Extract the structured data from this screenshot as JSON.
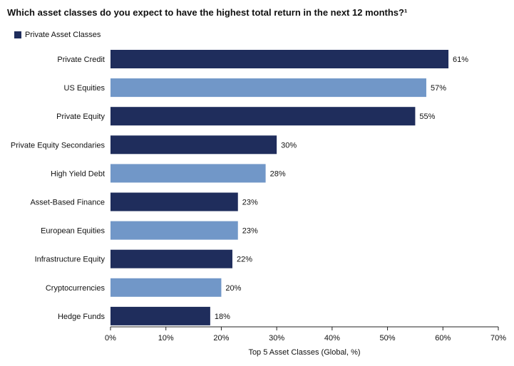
{
  "chart_data": {
    "type": "bar",
    "orientation": "horizontal",
    "title": "Which asset classes do you expect to have the highest total return in the next 12 months?¹",
    "xlabel": "Top 5 Asset Classes (Global, %)",
    "ylabel": "",
    "xlim": [
      0,
      70
    ],
    "x_ticks": [
      "0%",
      "10%",
      "20%",
      "30%",
      "40%",
      "50%",
      "60%",
      "70%"
    ],
    "grid": false,
    "legend": [
      {
        "name": "Private Asset Classes",
        "color": "#1f2d5c"
      }
    ],
    "legend_position": "top-left",
    "colors": {
      "private": "#1f2d5c",
      "other": "#7197c8"
    },
    "categories": [
      "Private Credit",
      "US Equities",
      "Private Equity",
      "Private Equity Secondaries",
      "High Yield Debt",
      "Asset-Based Finance",
      "European Equities",
      "Infrastructure Equity",
      "Cryptocurrencies",
      "Hedge Funds"
    ],
    "values": [
      61,
      57,
      55,
      30,
      28,
      23,
      23,
      22,
      20,
      18
    ],
    "value_labels": [
      "61%",
      "57%",
      "55%",
      "30%",
      "28%",
      "23%",
      "23%",
      "22%",
      "20%",
      "18%"
    ],
    "is_private": [
      true,
      false,
      true,
      true,
      false,
      true,
      false,
      true,
      false,
      true
    ]
  }
}
